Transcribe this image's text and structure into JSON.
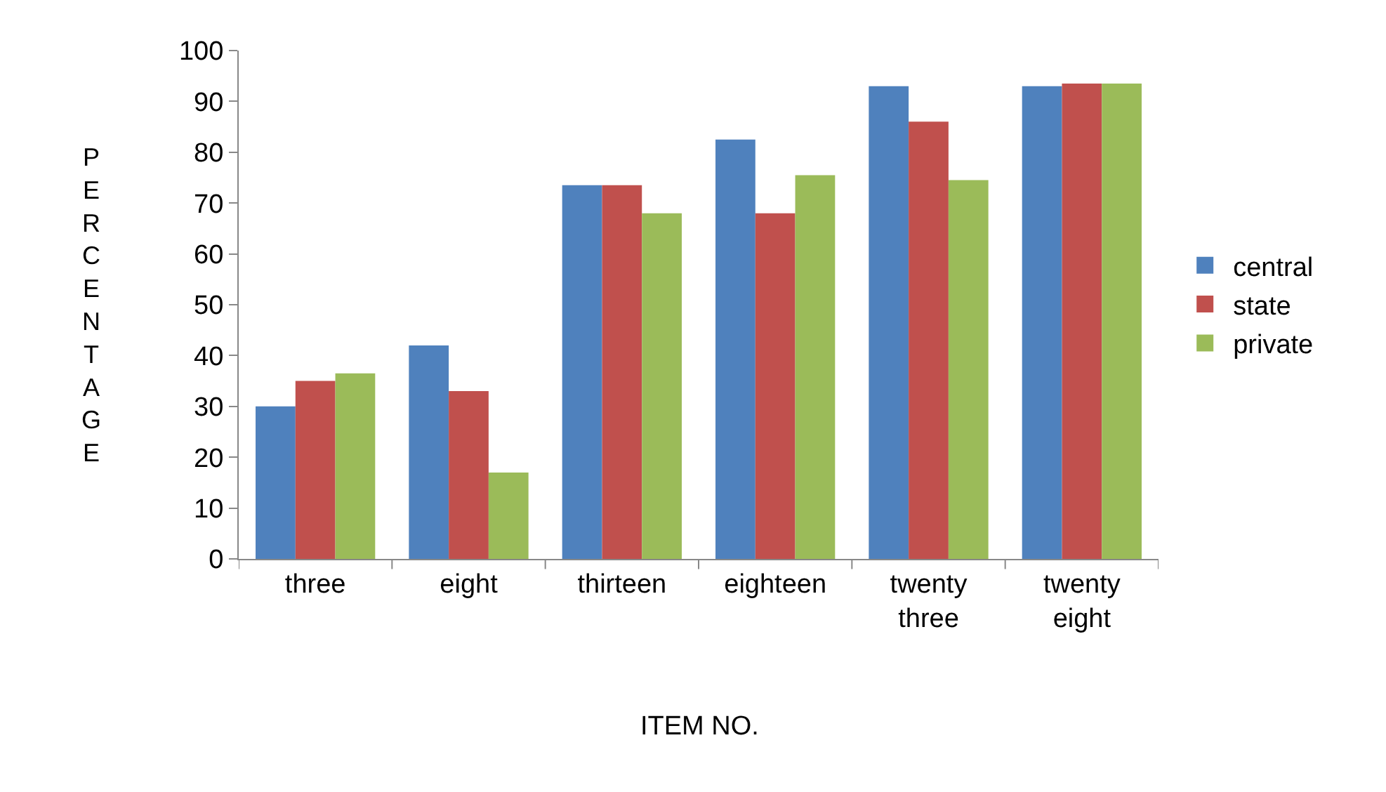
{
  "chart_data": {
    "type": "bar",
    "xlabel": "ITEM NO.",
    "ylabel": "PERCENTAGE",
    "categories": [
      "three",
      "eight",
      "thirteen",
      "eighteen",
      "twenty three",
      "twenty eight"
    ],
    "series": [
      {
        "name": "central",
        "color": "#4f81bd",
        "values": [
          30,
          42,
          73.5,
          82.5,
          93,
          93
        ]
      },
      {
        "name": "state",
        "color": "#c0504d",
        "values": [
          35,
          33,
          73.5,
          68,
          86,
          93.5
        ]
      },
      {
        "name": "private",
        "color": "#9bbb59",
        "values": [
          36.5,
          17,
          68,
          75.5,
          74.5,
          93.5
        ]
      }
    ],
    "ylim": [
      0,
      100
    ],
    "yticks": [
      0,
      10,
      20,
      30,
      40,
      50,
      60,
      70,
      80,
      90,
      100
    ],
    "grid": false,
    "legend": "right"
  }
}
